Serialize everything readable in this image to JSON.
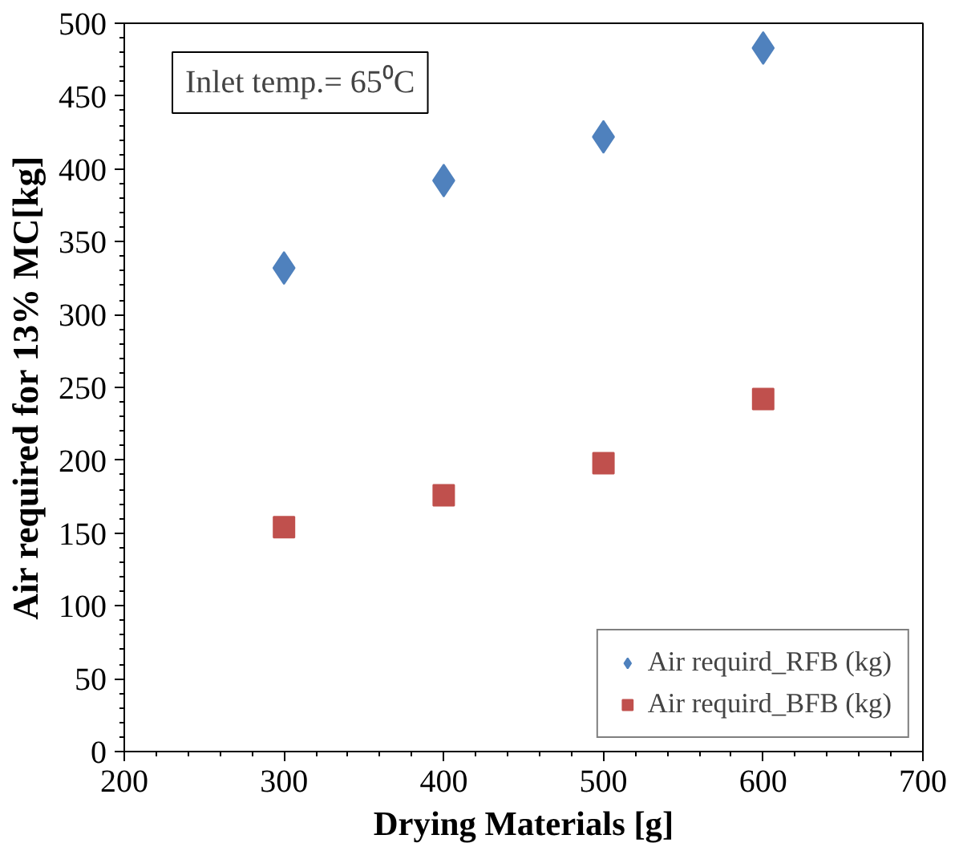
{
  "chart_data": {
    "type": "scatter",
    "xlabel": "Drying Materials [g]",
    "ylabel": "Air required for 13% MC[kg]",
    "annotations": [
      "Inlet temp.= 65⁰C"
    ],
    "x": [
      300,
      400,
      500,
      600
    ],
    "series": [
      {
        "name": "Air requird_RFB (kg)",
        "color": "#4f81bd",
        "marker": "diamond",
        "values": [
          332,
          392,
          422,
          483
        ]
      },
      {
        "name": "Air requird_BFB (kg)",
        "color": "#c0504d",
        "marker": "square",
        "values": [
          154,
          176,
          198,
          242
        ]
      }
    ],
    "xlim": [
      200,
      700
    ],
    "xticks": [
      200,
      300,
      400,
      500,
      600,
      700
    ],
    "ylim": [
      0,
      500
    ],
    "yticks": [
      0,
      50,
      100,
      150,
      200,
      250,
      300,
      350,
      400,
      450,
      500
    ],
    "grid": false,
    "legend": "bottom right"
  }
}
